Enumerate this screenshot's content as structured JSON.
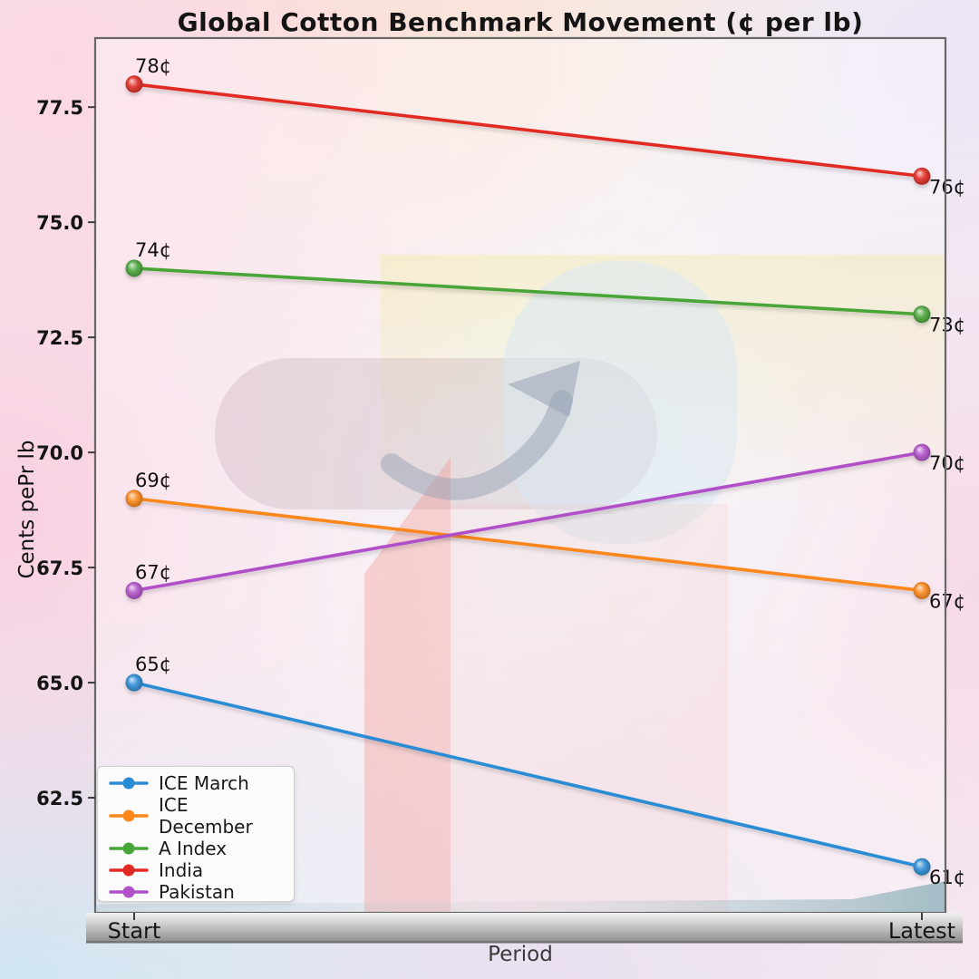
{
  "title": "Global Cotton Benchmark Movement (¢ per lb)",
  "chart_data": {
    "type": "line",
    "title": "Global Cotton Benchmark Movement (¢ per lb)",
    "xlabel": "Period",
    "ylabel": "Cents pePr lb",
    "categories": [
      "Start",
      "Latest"
    ],
    "yticks": [
      "62.5",
      "65.0",
      "67.5",
      "70.0",
      "72.5",
      "75.0",
      "77.5"
    ],
    "ylim": [
      60,
      79
    ],
    "unit_suffix": "¢",
    "grid": false,
    "legend_position": "lower left",
    "series": [
      {
        "name": "ICE March",
        "color": "#2a8cd4",
        "values": [
          65,
          61
        ],
        "point_labels": [
          "65¢",
          "61¢"
        ]
      },
      {
        "name": "ICE December",
        "color": "#fb861a",
        "values": [
          69,
          67
        ],
        "point_labels": [
          "69¢",
          "67¢"
        ]
      },
      {
        "name": "A Index",
        "color": "#48a538",
        "values": [
          74,
          73
        ],
        "point_labels": [
          "74¢",
          "73¢"
        ]
      },
      {
        "name": "India",
        "color": "#e02a22",
        "values": [
          78,
          76
        ],
        "point_labels": [
          "78¢",
          "76¢"
        ]
      },
      {
        "name": "Pakistan",
        "color": "#b150c8",
        "values": [
          67,
          70
        ],
        "point_labels": [
          "67¢",
          "70¢"
        ]
      }
    ]
  }
}
